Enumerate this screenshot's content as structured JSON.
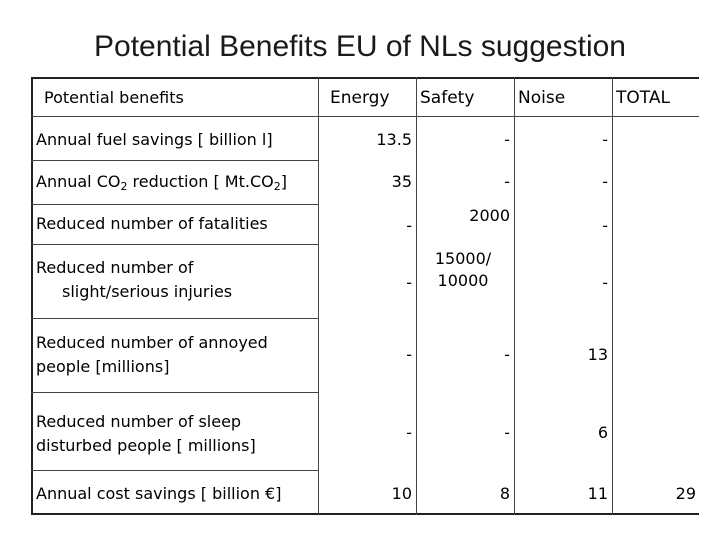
{
  "title": "Potential Benefits EU of NLs suggestion",
  "header": {
    "benefits": "Potential benefits",
    "energy": "Energy",
    "safety": "Safety",
    "noise": "Noise",
    "total": "TOTAL"
  },
  "rows": [
    {
      "label": "Annual fuel savings [ billion l]",
      "energy": "13.5",
      "safety": "-",
      "noise": "-",
      "total": ""
    },
    {
      "label_pre": "Annual CO",
      "label_sub1": "2",
      "label_mid": " reduction [ Mt.CO",
      "label_sub2": "2",
      "label_post": "]",
      "energy": "35",
      "safety": "-",
      "noise": "-",
      "total": ""
    },
    {
      "label": "Reduced number of fatalities",
      "energy": "-",
      "safety": "2000",
      "noise": "-",
      "total": ""
    },
    {
      "label_line1": "Reduced number of",
      "label_line2": "slight/serious injuries",
      "energy": "-",
      "safety_line1": "15000/",
      "safety_line2": "10000",
      "noise": "-",
      "total": ""
    },
    {
      "label_line1": "Reduced number of annoyed",
      "label_line2": "people [millions]",
      "energy": "-",
      "safety": "-",
      "noise": "13",
      "total": ""
    },
    {
      "label_line1": "Reduced number of sleep",
      "label_line2": "disturbed people [ millions]",
      "energy": "-",
      "safety": "-",
      "noise": "6",
      "total": ""
    },
    {
      "label": "Annual cost savings [ billion €]",
      "energy": "10",
      "safety": "8",
      "noise": "11",
      "total": "29"
    }
  ]
}
